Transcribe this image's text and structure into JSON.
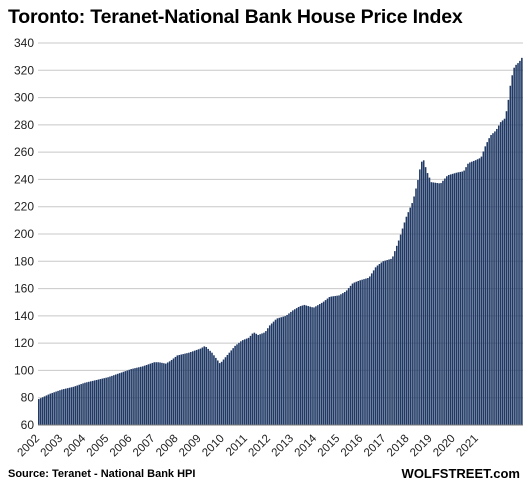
{
  "chart_data": {
    "type": "bar",
    "title": "Toronto: Teranet-National Bank House Price Index",
    "xlabel": "",
    "ylabel": "",
    "ylim": [
      60,
      340
    ],
    "yticks": [
      60,
      80,
      100,
      120,
      140,
      160,
      180,
      200,
      220,
      240,
      260,
      280,
      300,
      320,
      340
    ],
    "x_tick_labels": [
      "2002",
      "2003",
      "2004",
      "2005",
      "2006",
      "2007",
      "2008",
      "2009",
      "2010",
      "2011",
      "2012",
      "2013",
      "2014",
      "2015",
      "2016",
      "2017",
      "2018",
      "2019",
      "2020",
      "2021"
    ],
    "grid": true,
    "bar_color": "#1f3864",
    "start_year": 2002,
    "monthly_series_anchors": [
      [
        2002.0,
        79
      ],
      [
        2002.5,
        83
      ],
      [
        2003.0,
        86
      ],
      [
        2003.5,
        88
      ],
      [
        2004.0,
        91
      ],
      [
        2004.5,
        93
      ],
      [
        2005.0,
        95
      ],
      [
        2005.5,
        98
      ],
      [
        2006.0,
        101
      ],
      [
        2006.5,
        103
      ],
      [
        2007.0,
        106
      ],
      [
        2007.2,
        106
      ],
      [
        2007.5,
        105
      ],
      [
        2007.7,
        107
      ],
      [
        2008.0,
        111
      ],
      [
        2008.5,
        113
      ],
      [
        2009.0,
        116
      ],
      [
        2009.2,
        118
      ],
      [
        2009.5,
        113
      ],
      [
        2009.85,
        105
      ],
      [
        2010.2,
        112
      ],
      [
        2010.5,
        118
      ],
      [
        2010.8,
        122
      ],
      [
        2011.1,
        124
      ],
      [
        2011.3,
        128
      ],
      [
        2011.5,
        126
      ],
      [
        2011.8,
        128
      ],
      [
        2012.0,
        133
      ],
      [
        2012.3,
        138
      ],
      [
        2012.7,
        140
      ],
      [
        2013.0,
        144
      ],
      [
        2013.3,
        147
      ],
      [
        2013.5,
        148
      ],
      [
        2013.9,
        146
      ],
      [
        2014.3,
        150
      ],
      [
        2014.6,
        154
      ],
      [
        2015.0,
        155
      ],
      [
        2015.3,
        158
      ],
      [
        2015.6,
        164
      ],
      [
        2015.9,
        166
      ],
      [
        2016.3,
        168
      ],
      [
        2016.6,
        176
      ],
      [
        2016.9,
        180
      ],
      [
        2017.3,
        182
      ],
      [
        2017.6,
        196
      ],
      [
        2017.9,
        212
      ],
      [
        2018.2,
        224
      ],
      [
        2018.4,
        238
      ],
      [
        2018.55,
        252
      ],
      [
        2018.65,
        255
      ],
      [
        2018.8,
        246
      ],
      [
        2019.0,
        238
      ],
      [
        2019.4,
        237
      ],
      [
        2019.7,
        243
      ],
      [
        2020.1,
        245
      ],
      [
        2020.4,
        246
      ],
      [
        2020.6,
        252
      ],
      [
        2020.9,
        254
      ],
      [
        2021.15,
        256
      ],
      [
        2021.35,
        265
      ],
      [
        2021.55,
        272
      ],
      [
        2021.8,
        276
      ],
      [
        2022.0,
        282
      ],
      [
        2022.2,
        285
      ],
      [
        2022.35,
        300
      ],
      [
        2022.45,
        313
      ],
      [
        2022.6,
        323
      ],
      [
        2022.8,
        326
      ],
      [
        2022.95,
        330
      ]
    ]
  },
  "source": "Source: Teranet - National Bank HPI",
  "brand": "WOLFSTREET.com"
}
